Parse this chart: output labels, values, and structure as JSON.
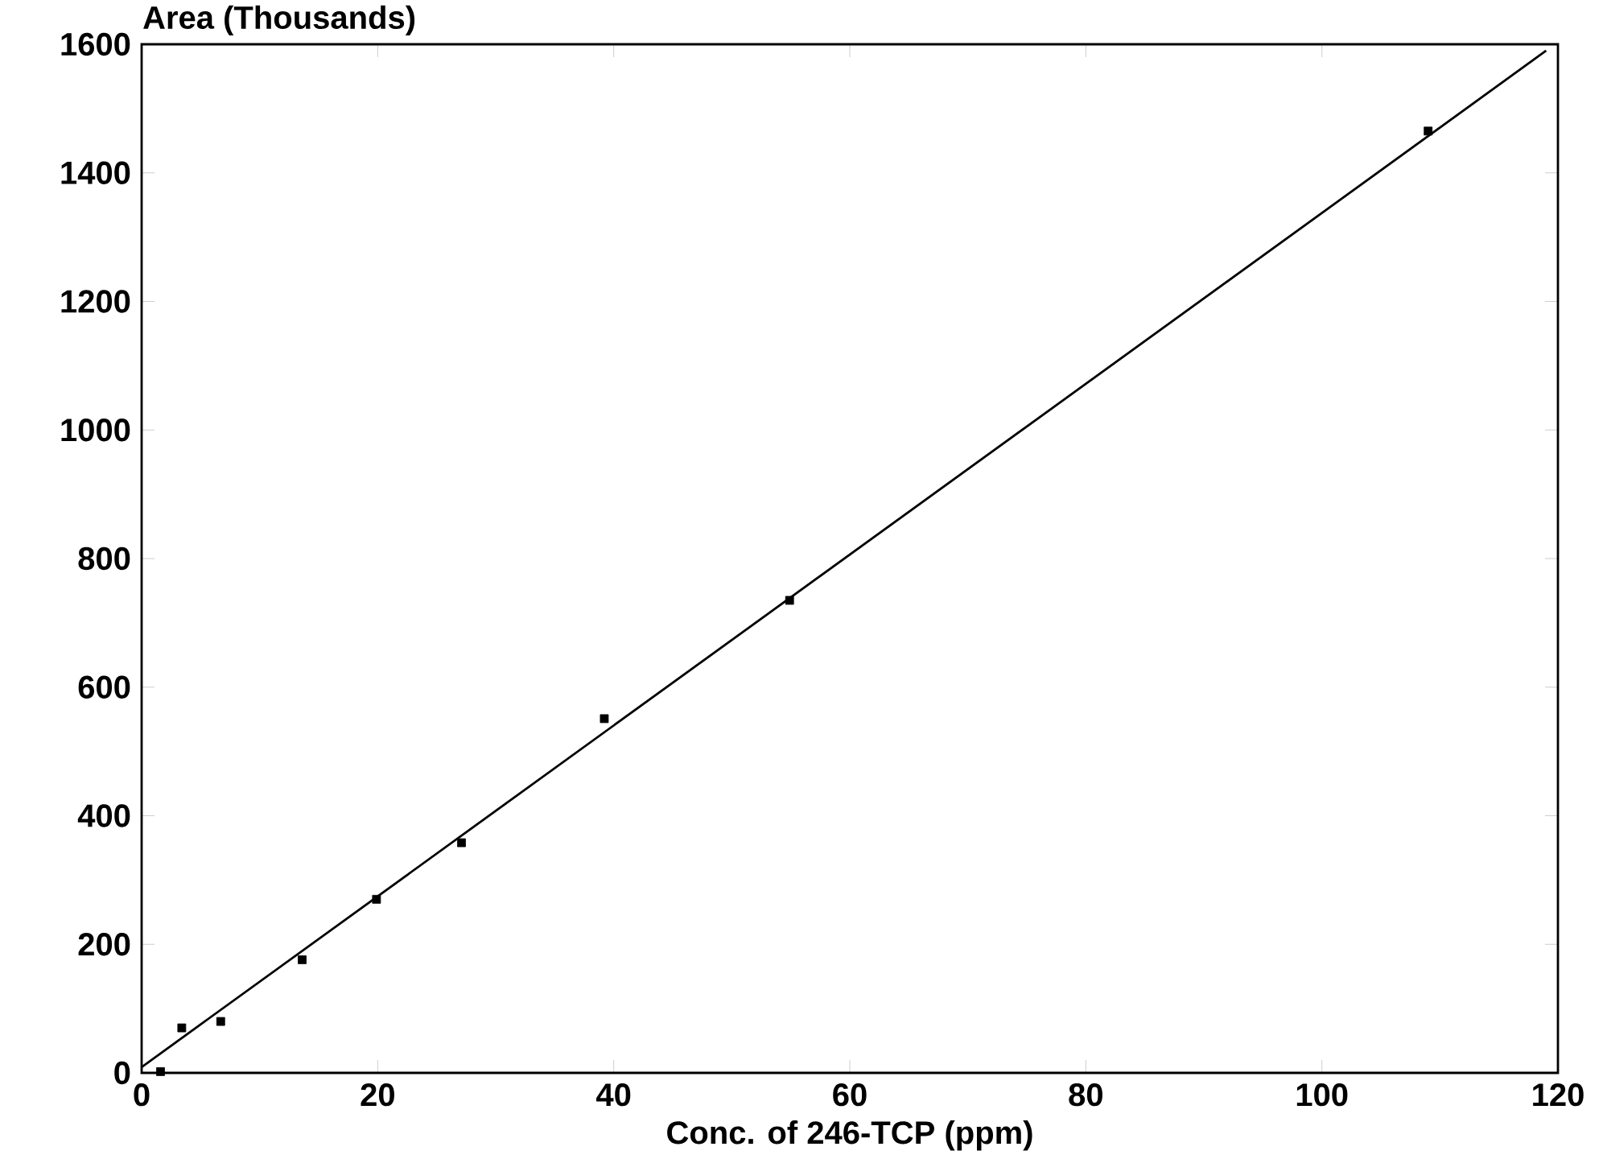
{
  "chart_data": {
    "type": "scatter",
    "xlabel": "Conc. of 246-TCP (ppm)",
    "ylabel": "Area (Thousands)",
    "xlim": [
      0,
      120
    ],
    "xticks": [
      0,
      20,
      40,
      60,
      80,
      100,
      120
    ],
    "ylim": [
      0,
      1600
    ],
    "yticks": [
      0,
      200,
      400,
      600,
      800,
      1000,
      1200,
      1400,
      1600
    ],
    "grid": false,
    "legend": false,
    "marker": "square",
    "series": [
      {
        "color": "#000000",
        "x": [
          1.6,
          3.4,
          6.7,
          13.6,
          19.9,
          27.1,
          39.2,
          54.9,
          109
        ],
        "values": [
          2,
          70,
          80,
          176,
          270,
          358,
          551,
          735,
          1465
        ]
      },
      {
        "type": "line",
        "marker": "none",
        "line_style": "solid",
        "color": "#000000",
        "x": [
          0,
          119
        ],
        "values": [
          9,
          1590
        ]
      }
    ]
  }
}
